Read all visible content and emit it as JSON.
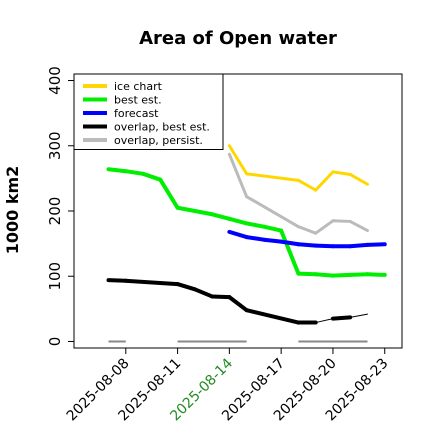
{
  "chart_data": {
    "type": "line",
    "title": "Area of Open water",
    "xlabel": "",
    "ylabel": "1000 km2",
    "ylim": [
      -10,
      410
    ],
    "xlim": [
      "2025-08-05",
      "2025-08-24"
    ],
    "grid": false,
    "legend_position": "top-left",
    "y_ticks": [
      "0",
      "100",
      "200",
      "300",
      "400"
    ],
    "x_ticks": [
      {
        "label": "2025-08-08",
        "x": "2025-08-08",
        "color": "#000000"
      },
      {
        "label": "2025-08-11",
        "x": "2025-08-11",
        "color": "#000000"
      },
      {
        "label": "2025-08-14",
        "x": "2025-08-14",
        "color": "#228B22"
      },
      {
        "label": "2025-08-17",
        "x": "2025-08-17",
        "color": "#000000"
      },
      {
        "label": "2025-08-20",
        "x": "2025-08-20",
        "color": "#000000"
      },
      {
        "label": "2025-08-23",
        "x": "2025-08-23",
        "color": "#000000"
      }
    ],
    "series": [
      {
        "name": "ice chart",
        "color": "#FFD700",
        "width": 3,
        "x": [
          "2025-08-14",
          "2025-08-15",
          "2025-08-18",
          "2025-08-19",
          "2025-08-20",
          "2025-08-21",
          "2025-08-22"
        ],
        "y": [
          300,
          257,
          247,
          232,
          260,
          256,
          241
        ]
      },
      {
        "name": "best est.",
        "color": "#00EE00",
        "width": 4,
        "x": [
          "2025-08-07",
          "2025-08-08",
          "2025-08-09",
          "2025-08-10",
          "2025-08-11",
          "2025-08-12",
          "2025-08-13",
          "2025-08-14",
          "2025-08-15",
          "2025-08-16",
          "2025-08-17",
          "2025-08-18",
          "2025-08-19",
          "2025-08-20",
          "2025-08-21",
          "2025-08-22",
          "2025-08-23"
        ],
        "y": [
          264,
          261,
          257,
          248,
          205,
          200,
          195,
          188,
          181,
          176,
          170,
          104,
          103,
          101,
          102,
          103,
          102
        ]
      },
      {
        "name": "forecast",
        "color": "#0000FF",
        "width": 4,
        "x": [
          "2025-08-14",
          "2025-08-15",
          "2025-08-16",
          "2025-08-17",
          "2025-08-18",
          "2025-08-19",
          "2025-08-20",
          "2025-08-21",
          "2025-08-22",
          "2025-08-23"
        ],
        "y": [
          168,
          160,
          156,
          153,
          149,
          147,
          146,
          146,
          148,
          149
        ]
      },
      {
        "name": "overlap, best est.",
        "color": "#000000",
        "width": 4,
        "segment_breaks": [
          8,
          10
        ],
        "x": [
          "2025-08-07",
          "2025-08-08",
          "2025-08-11",
          "2025-08-12",
          "2025-08-13",
          "2025-08-14",
          "2025-08-15",
          "2025-08-18",
          "2025-08-19",
          "2025-08-20",
          "2025-08-21",
          "2025-08-22"
        ],
        "y": [
          94,
          93,
          88,
          80,
          69,
          68,
          48,
          29,
          29,
          35,
          37,
          42
        ]
      },
      {
        "name": "overlap, persist.",
        "color": "#BBBBBB",
        "width": 3,
        "x": [
          "2025-08-14",
          "2025-08-15",
          "2025-08-18",
          "2025-08-19",
          "2025-08-20",
          "2025-08-21",
          "2025-08-22"
        ],
        "y": [
          287,
          222,
          176,
          166,
          185,
          184,
          170
        ]
      }
    ],
    "baselines": [
      {
        "color": "#888888",
        "y": 0,
        "x_ranges": [
          [
            "2025-08-07",
            "2025-08-08"
          ],
          [
            "2025-08-11",
            "2025-08-15"
          ],
          [
            "2025-08-18",
            "2025-08-22"
          ]
        ]
      }
    ]
  }
}
